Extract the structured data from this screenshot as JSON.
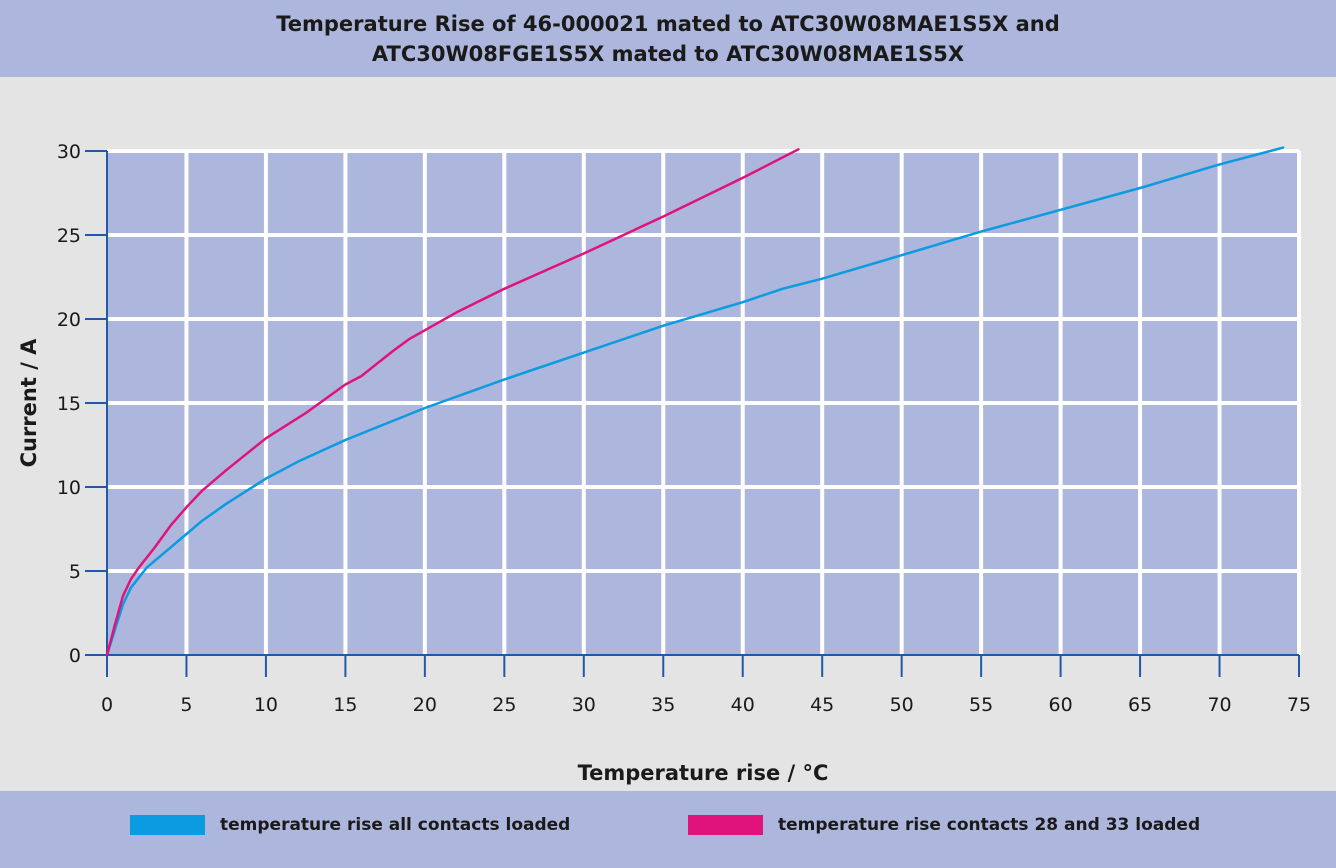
{
  "title_lines": [
    "Temperature Rise of 46-000021 mated to ATC30W08MAE1S5X and",
    "ATC30W08FGE1S5X mated to ATC30W08MAE1S5X"
  ],
  "colors": {
    "band": "#adb6dc",
    "background": "#e4e4e4",
    "grid_cell": "#adb6dc",
    "grid_line": "#ffffff",
    "axis": "#1f5aa8"
  },
  "chart_data": {
    "type": "line",
    "title": "Temperature Rise of 46-000021 mated to ATC30W08MAE1S5X and ATC30W08FGE1S5X mated to ATC30W08MAE1S5X",
    "xlabel": "Temperature rise / °C",
    "ylabel": "Current / A",
    "xlim": [
      0,
      75
    ],
    "ylim": [
      0,
      30
    ],
    "x_ticks": [
      0,
      5,
      10,
      15,
      20,
      25,
      30,
      35,
      40,
      45,
      50,
      55,
      60,
      65,
      70,
      75
    ],
    "y_ticks": [
      0,
      5,
      10,
      15,
      20,
      25,
      30
    ],
    "grid": true,
    "legend_position": "bottom",
    "series": [
      {
        "name": "temperature rise all contacts loaded",
        "color": "#0a9be0",
        "points": [
          [
            0,
            0
          ],
          [
            0.5,
            1.5
          ],
          [
            1,
            3
          ],
          [
            1.5,
            4
          ],
          [
            2,
            4.6
          ],
          [
            2.5,
            5.2
          ],
          [
            3.5,
            6
          ],
          [
            5,
            7.2
          ],
          [
            6,
            8
          ],
          [
            7.5,
            9
          ],
          [
            10,
            10.5
          ],
          [
            12,
            11.5
          ],
          [
            15,
            12.8
          ],
          [
            20,
            14.7
          ],
          [
            25,
            16.4
          ],
          [
            30,
            18
          ],
          [
            35,
            19.6
          ],
          [
            40,
            21
          ],
          [
            42.5,
            21.8
          ],
          [
            45,
            22.4
          ],
          [
            50,
            23.8
          ],
          [
            55,
            25.2
          ],
          [
            60,
            26.5
          ],
          [
            65,
            27.8
          ],
          [
            70,
            29.2
          ],
          [
            74,
            30.2
          ]
        ]
      },
      {
        "name": "temperature rise contacts 28 and 33 loaded",
        "color": "#e0137b",
        "points": [
          [
            0,
            0
          ],
          [
            0.5,
            1.8
          ],
          [
            1,
            3.5
          ],
          [
            1.5,
            4.5
          ],
          [
            2,
            5.2
          ],
          [
            3,
            6.4
          ],
          [
            4,
            7.7
          ],
          [
            5,
            8.8
          ],
          [
            6,
            9.8
          ],
          [
            7.5,
            11
          ],
          [
            10,
            12.9
          ],
          [
            12.5,
            14.4
          ],
          [
            15,
            16.1
          ],
          [
            16,
            16.6
          ],
          [
            18,
            18.1
          ],
          [
            19,
            18.8
          ],
          [
            22,
            20.4
          ],
          [
            25,
            21.8
          ],
          [
            30,
            23.9
          ],
          [
            35,
            26.1
          ],
          [
            40,
            28.4
          ],
          [
            43.5,
            30.1
          ]
        ]
      }
    ]
  }
}
